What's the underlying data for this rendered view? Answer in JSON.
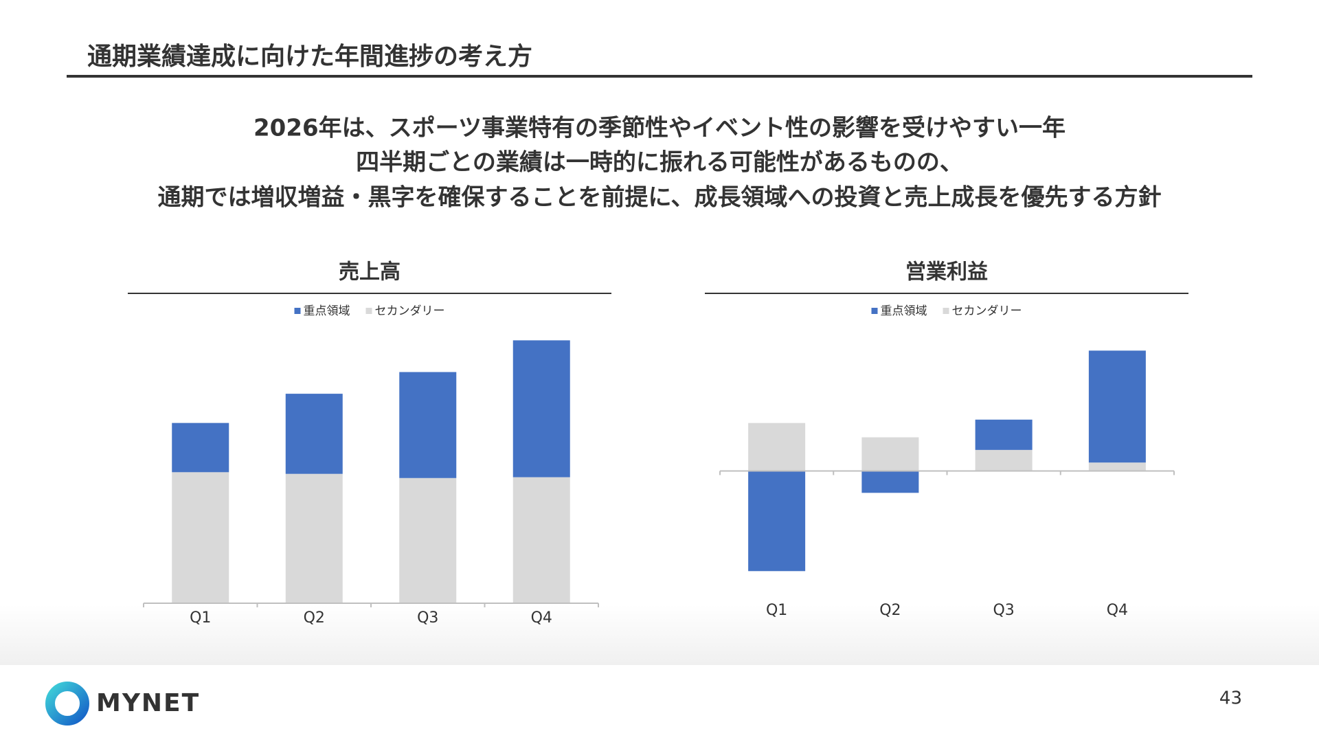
{
  "title": "通期業績達成に向けた年間進捗の考え方",
  "message": [
    "2026年は、スポーツ事業特有の季節性やイベント性の影響を受けやすい一年",
    "四半期ごとの業績は一時的に振れる可能性があるものの、",
    "通期では増収増益・黒字を確保することを前提に、成長領域への投資と売上成長を優先する方針"
  ],
  "chart_data": [
    {
      "type": "stacked-bar",
      "title": "売上高",
      "categories": [
        "Q1",
        "Q2",
        "Q3",
        "Q4"
      ],
      "series": [
        {
          "name": "重点領域",
          "color": "#4472c4",
          "values": [
            59,
            96,
            127,
            164
          ]
        },
        {
          "name": "セカンダリー",
          "color": "#d9d9d9",
          "values": [
            157,
            155,
            150,
            151
          ]
        }
      ],
      "ylim": [
        0,
        340
      ]
    },
    {
      "type": "stacked-bar",
      "title": "営業利益",
      "categories": [
        "Q1",
        "Q2",
        "Q3",
        "Q4"
      ],
      "series": [
        {
          "name": "重点領域",
          "color": "#4472c4",
          "values": [
            -119,
            -26,
            36,
            133
          ]
        },
        {
          "name": "セカンダリー",
          "color": "#d9d9d9",
          "values": [
            57,
            40,
            25,
            10
          ]
        }
      ],
      "ylim": [
        -140,
        180
      ]
    }
  ],
  "footer": {
    "logo": "MYNET",
    "page": "43"
  }
}
